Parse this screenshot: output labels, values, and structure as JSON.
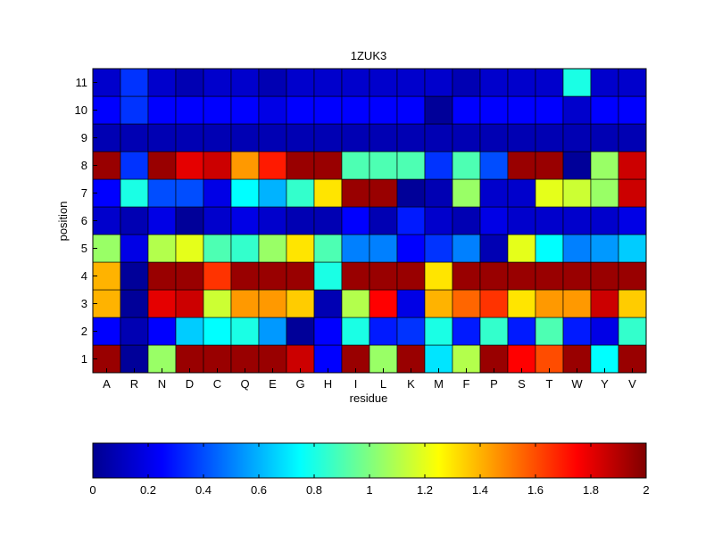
{
  "chart_data": {
    "type": "heatmap",
    "title": "1ZUK3",
    "xlabel": "residue",
    "ylabel": "position",
    "x": [
      "A",
      "R",
      "N",
      "D",
      "C",
      "Q",
      "E",
      "G",
      "H",
      "I",
      "L",
      "K",
      "M",
      "F",
      "P",
      "S",
      "T",
      "W",
      "Y",
      "V"
    ],
    "y": [
      1,
      2,
      3,
      4,
      5,
      6,
      7,
      8,
      9,
      10,
      11
    ],
    "values": [
      [
        1.95,
        0.05,
        1.05,
        1.95,
        1.95,
        1.95,
        1.95,
        1.85,
        0.25,
        1.95,
        1.05,
        1.95,
        0.7,
        1.1,
        1.95,
        1.75,
        1.6,
        1.95,
        0.75,
        1.95
      ],
      [
        0.25,
        0.1,
        0.25,
        0.65,
        0.75,
        0.8,
        0.55,
        0.05,
        0.25,
        0.8,
        0.3,
        0.35,
        0.8,
        0.3,
        0.85,
        0.3,
        0.9,
        0.3,
        0.2,
        0.85
      ],
      [
        1.4,
        0.05,
        1.8,
        1.85,
        1.15,
        1.45,
        1.45,
        1.35,
        0.1,
        1.1,
        1.75,
        0.2,
        1.4,
        1.55,
        1.65,
        1.3,
        1.45,
        1.45,
        1.85,
        1.35
      ],
      [
        1.4,
        0.05,
        1.95,
        1.95,
        1.65,
        1.95,
        1.95,
        1.95,
        0.8,
        1.95,
        1.95,
        1.95,
        1.3,
        1.95,
        1.95,
        1.95,
        1.95,
        1.95,
        1.95,
        1.95
      ],
      [
        1.05,
        0.2,
        1.1,
        1.2,
        0.9,
        0.85,
        1.05,
        1.3,
        0.9,
        0.5,
        0.5,
        0.25,
        0.35,
        0.5,
        0.1,
        1.2,
        0.75,
        0.5,
        0.55,
        0.65
      ],
      [
        0.15,
        0.1,
        0.2,
        0.05,
        0.15,
        0.2,
        0.15,
        0.1,
        0.1,
        0.25,
        0.1,
        0.3,
        0.15,
        0.1,
        0.2,
        0.15,
        0.15,
        0.15,
        0.15,
        0.2
      ],
      [
        0.25,
        0.8,
        0.4,
        0.4,
        0.2,
        0.75,
        0.6,
        0.85,
        1.3,
        1.95,
        1.95,
        0.05,
        0.1,
        1.05,
        0.15,
        0.15,
        1.2,
        1.15,
        1.05,
        1.85
      ],
      [
        1.95,
        0.35,
        1.95,
        1.8,
        1.85,
        1.45,
        1.7,
        1.95,
        1.95,
        0.9,
        0.9,
        0.9,
        0.35,
        0.9,
        0.4,
        1.95,
        1.95,
        0.05,
        1.05,
        1.85
      ],
      [
        0.1,
        0.1,
        0.1,
        0.1,
        0.1,
        0.1,
        0.1,
        0.1,
        0.1,
        0.1,
        0.1,
        0.1,
        0.1,
        0.1,
        0.1,
        0.1,
        0.1,
        0.1,
        0.1,
        0.1
      ],
      [
        0.25,
        0.35,
        0.25,
        0.25,
        0.25,
        0.25,
        0.2,
        0.25,
        0.25,
        0.25,
        0.25,
        0.25,
        0.05,
        0.25,
        0.25,
        0.25,
        0.25,
        0.15,
        0.25,
        0.25
      ],
      [
        0.15,
        0.35,
        0.15,
        0.1,
        0.15,
        0.15,
        0.1,
        0.15,
        0.15,
        0.15,
        0.15,
        0.15,
        0.15,
        0.1,
        0.15,
        0.15,
        0.15,
        0.8,
        0.15,
        0.15
      ]
    ],
    "zlim": [
      0,
      2
    ],
    "colormap": "jet",
    "colorbar": {
      "orientation": "horizontal",
      "ticks": [
        0,
        0.2,
        0.4,
        0.6,
        0.8,
        1,
        1.2,
        1.4,
        1.6,
        1.8,
        2
      ],
      "tick_labels": [
        "0",
        "0.2",
        "0.4",
        "0.6",
        "0.8",
        "1",
        "1.2",
        "1.4",
        "1.6",
        "1.8",
        "2"
      ]
    },
    "grid": false
  }
}
